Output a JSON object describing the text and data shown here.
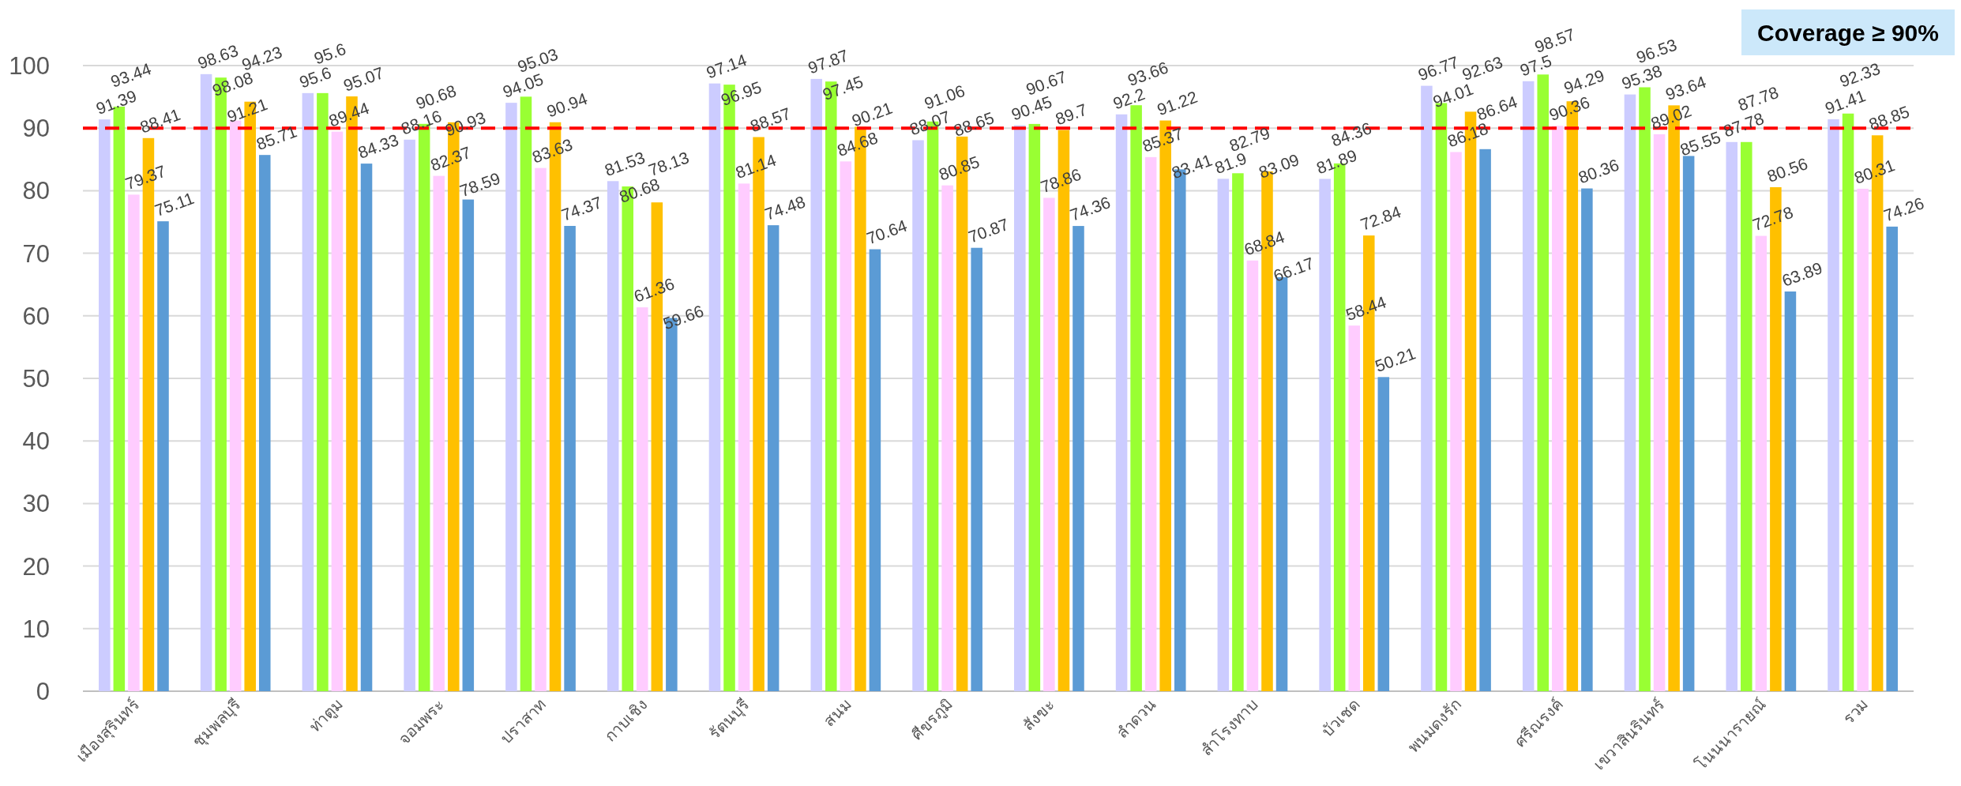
{
  "chart_data": {
    "type": "bar",
    "categories": [
      "เมืองสุรินทร์",
      "ชุมพลบุรี",
      "ท่าตูม",
      "จอมพระ",
      "ปราสาท",
      "กาบเชิง",
      "รัตนบุรี",
      "สนม",
      "ศีขรภูมิ",
      "สังขะ",
      "ลำดวน",
      "สำโรงทาบ",
      "บัวเชด",
      "พนมดงรัก",
      "ศรีณรงค์",
      "เขวาสินรินทร์",
      "โนนนารายณ์",
      "รวม"
    ],
    "series": [
      {
        "color": "#ccccff",
        "values": [
          91.39,
          98.63,
          95.6,
          88.16,
          94.05,
          81.53,
          97.14,
          97.87,
          88.07,
          90.45,
          92.2,
          81.9,
          81.89,
          96.77,
          97.5,
          95.38,
          87.78,
          91.41
        ]
      },
      {
        "color": "#99ff33",
        "values": [
          93.44,
          98.08,
          95.6,
          90.68,
          95.03,
          80.68,
          96.95,
          97.45,
          91.06,
          90.67,
          93.66,
          82.79,
          84.36,
          94.01,
          98.57,
          96.53,
          87.78,
          92.33
        ]
      },
      {
        "color": "#ffccff",
        "values": [
          79.37,
          91.21,
          89.44,
          82.37,
          83.63,
          61.36,
          81.14,
          84.68,
          80.85,
          78.86,
          85.37,
          68.84,
          58.44,
          86.18,
          90.36,
          89.02,
          72.78,
          80.31
        ]
      },
      {
        "color": "#ffc000",
        "values": [
          88.41,
          94.23,
          95.07,
          90.93,
          90.94,
          78.13,
          88.57,
          90.21,
          88.65,
          89.7,
          91.22,
          83.09,
          72.84,
          92.63,
          94.29,
          93.64,
          80.56,
          88.85
        ]
      },
      {
        "color": "#5b9bd5",
        "values": [
          75.11,
          85.71,
          84.33,
          78.59,
          74.37,
          59.66,
          74.48,
          70.64,
          70.87,
          74.36,
          83.41,
          66.17,
          50.21,
          86.64,
          80.36,
          85.55,
          63.89,
          74.26
        ]
      }
    ],
    "ylim": [
      0,
      100
    ],
    "yticks": [
      0,
      10,
      20,
      30,
      40,
      50,
      60,
      70,
      80,
      90,
      100
    ],
    "grid": "y",
    "data_labels": true,
    "ref_lines": [
      {
        "axis": "y",
        "value": 90,
        "color": "#ff0000",
        "line_style": "dashed"
      }
    ],
    "annotations": [
      "Coverage ≥ 90%"
    ]
  }
}
